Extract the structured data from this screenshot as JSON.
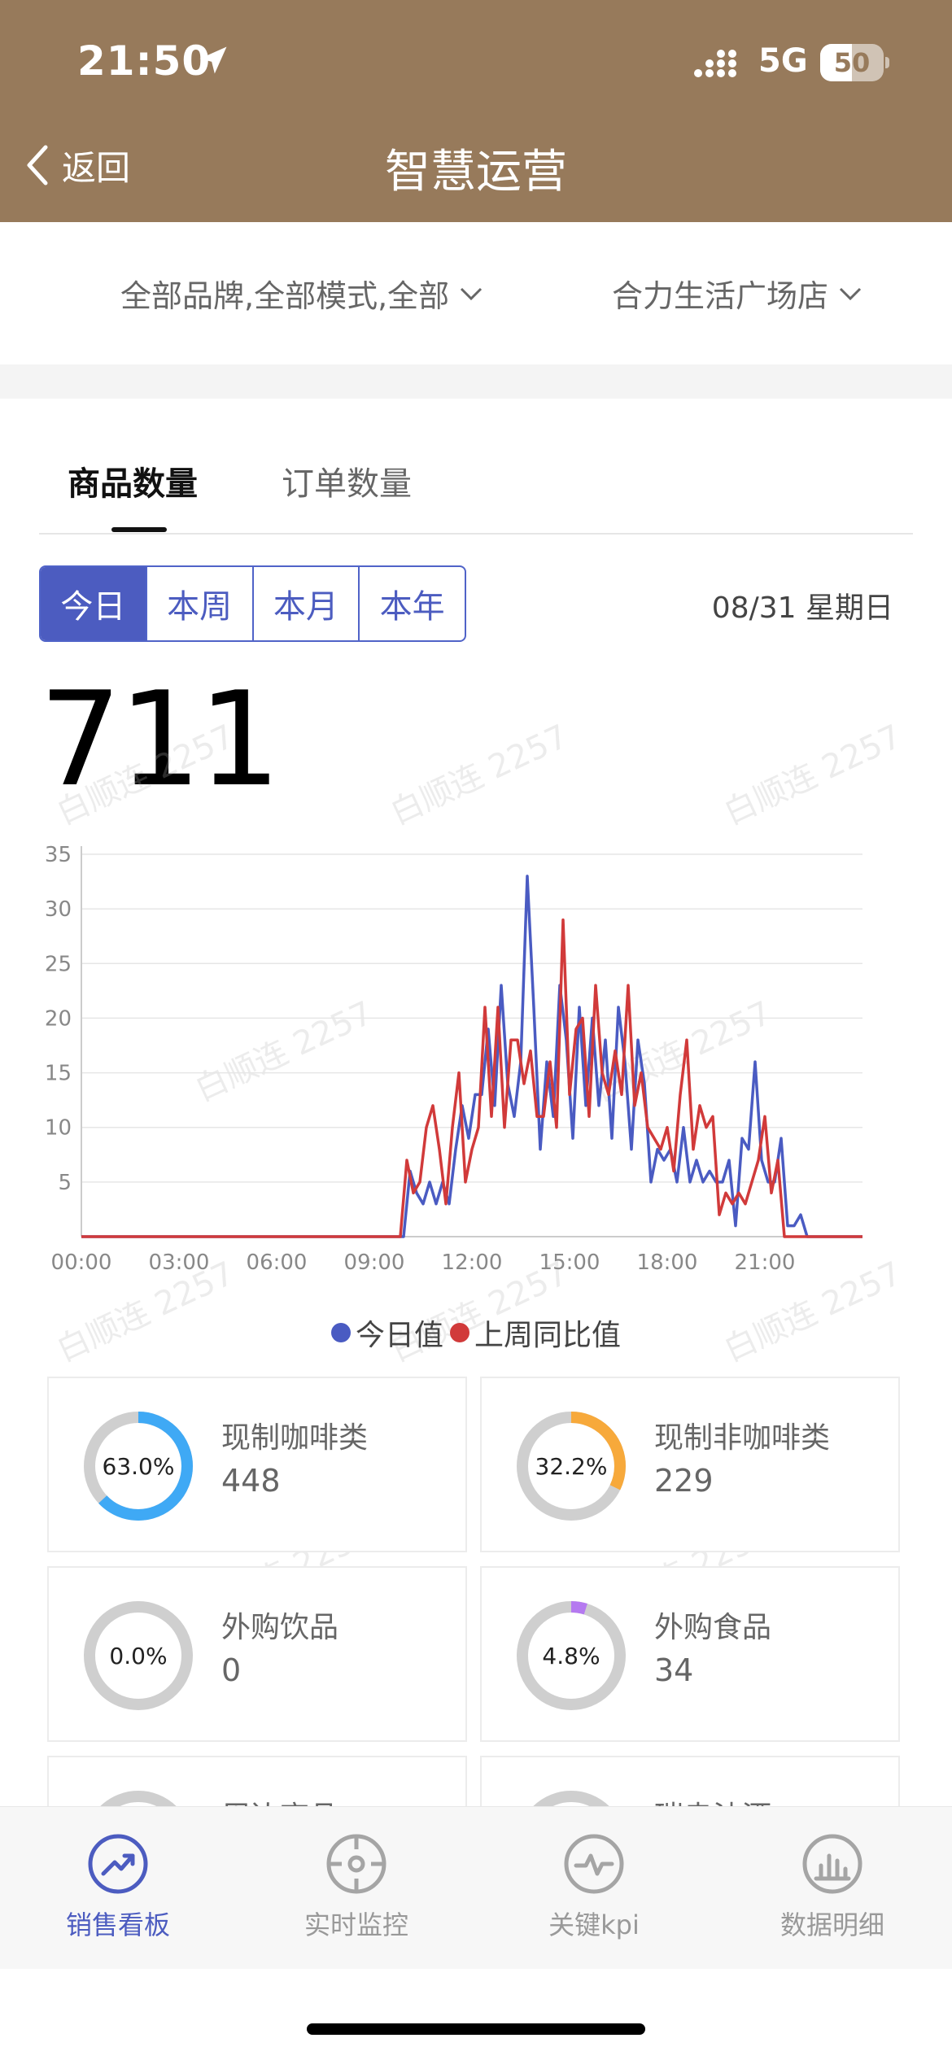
{
  "status_bar": {
    "time": "21:50",
    "network": "5G",
    "battery": "50",
    "battery_level": 0.5
  },
  "nav": {
    "back_label": "返回",
    "title": "智慧运营"
  },
  "filters": {
    "brand_mode": "全部品牌,全部模式,全部",
    "store": "合力生活广场店"
  },
  "tabs": [
    {
      "label": "商品数量",
      "active": true
    },
    {
      "label": "订单数量",
      "active": false
    }
  ],
  "period": {
    "options": [
      "今日",
      "本周",
      "本月",
      "本年"
    ],
    "selected": "今日"
  },
  "date": "08/31 星期日",
  "total": "711",
  "watermark": "白顺连 2257",
  "chart_data": {
    "type": "line",
    "x_ticks": [
      "00:00",
      "03:00",
      "06:00",
      "09:00",
      "12:00",
      "15:00",
      "18:00",
      "21:00"
    ],
    "y_ticks": [
      5,
      10,
      15,
      20,
      25,
      30,
      35
    ],
    "ylim": [
      0,
      35
    ],
    "xlim_hours": [
      0,
      24
    ],
    "grid": true,
    "legend_placement": "bottom",
    "series": [
      {
        "name": "今日值",
        "color": "#4a5bc2",
        "points": [
          [
            0,
            0
          ],
          [
            9.9,
            0
          ],
          [
            10.1,
            6
          ],
          [
            10.3,
            4
          ],
          [
            10.5,
            3
          ],
          [
            10.7,
            5
          ],
          [
            10.9,
            3
          ],
          [
            11.1,
            5
          ],
          [
            11.3,
            3
          ],
          [
            11.5,
            8
          ],
          [
            11.7,
            12
          ],
          [
            11.9,
            9
          ],
          [
            12.1,
            13
          ],
          [
            12.3,
            13
          ],
          [
            12.5,
            19
          ],
          [
            12.7,
            12
          ],
          [
            12.9,
            23
          ],
          [
            13.1,
            14
          ],
          [
            13.3,
            11
          ],
          [
            13.5,
            16
          ],
          [
            13.7,
            33
          ],
          [
            13.9,
            21
          ],
          [
            14.1,
            8
          ],
          [
            14.3,
            16
          ],
          [
            14.5,
            11
          ],
          [
            14.7,
            23
          ],
          [
            14.9,
            18
          ],
          [
            15.1,
            9
          ],
          [
            15.3,
            21
          ],
          [
            15.5,
            12
          ],
          [
            15.7,
            20
          ],
          [
            15.9,
            12
          ],
          [
            16.1,
            18
          ],
          [
            16.3,
            9
          ],
          [
            16.5,
            21
          ],
          [
            16.7,
            16
          ],
          [
            16.9,
            8
          ],
          [
            17.1,
            18
          ],
          [
            17.3,
            14
          ],
          [
            17.5,
            5
          ],
          [
            17.7,
            8
          ],
          [
            17.9,
            7
          ],
          [
            18.1,
            8
          ],
          [
            18.3,
            5
          ],
          [
            18.5,
            10
          ],
          [
            18.7,
            5
          ],
          [
            18.9,
            7
          ],
          [
            19.1,
            5
          ],
          [
            19.3,
            6
          ],
          [
            19.5,
            5
          ],
          [
            19.7,
            5
          ],
          [
            19.9,
            7
          ],
          [
            20.1,
            1
          ],
          [
            20.3,
            9
          ],
          [
            20.5,
            8
          ],
          [
            20.7,
            16
          ],
          [
            20.9,
            7
          ],
          [
            21.1,
            5
          ],
          [
            21.3,
            5
          ],
          [
            21.5,
            9
          ],
          [
            21.7,
            1
          ],
          [
            21.9,
            1
          ],
          [
            22.1,
            2
          ],
          [
            22.3,
            0
          ],
          [
            24,
            0
          ]
        ]
      },
      {
        "name": "上周同比值",
        "color": "#d13a3a",
        "points": [
          [
            0,
            0
          ],
          [
            9.8,
            0
          ],
          [
            10.0,
            7
          ],
          [
            10.2,
            4
          ],
          [
            10.4,
            5
          ],
          [
            10.6,
            10
          ],
          [
            10.8,
            12
          ],
          [
            11.0,
            8
          ],
          [
            11.2,
            3
          ],
          [
            11.4,
            10
          ],
          [
            11.6,
            15
          ],
          [
            11.8,
            5
          ],
          [
            12.0,
            8
          ],
          [
            12.2,
            10
          ],
          [
            12.4,
            21
          ],
          [
            12.6,
            11
          ],
          [
            12.8,
            21
          ],
          [
            13.0,
            10
          ],
          [
            13.2,
            18
          ],
          [
            13.4,
            18
          ],
          [
            13.6,
            14
          ],
          [
            13.8,
            17
          ],
          [
            14.0,
            11
          ],
          [
            14.2,
            11
          ],
          [
            14.4,
            16
          ],
          [
            14.6,
            10
          ],
          [
            14.8,
            29
          ],
          [
            15.0,
            13
          ],
          [
            15.2,
            19
          ],
          [
            15.4,
            20
          ],
          [
            15.6,
            11
          ],
          [
            15.8,
            23
          ],
          [
            16.0,
            15
          ],
          [
            16.2,
            13
          ],
          [
            16.4,
            17
          ],
          [
            16.6,
            13
          ],
          [
            16.8,
            23
          ],
          [
            17.0,
            12
          ],
          [
            17.2,
            15
          ],
          [
            17.4,
            10
          ],
          [
            17.6,
            9
          ],
          [
            17.8,
            8
          ],
          [
            18.0,
            10
          ],
          [
            18.2,
            6
          ],
          [
            18.4,
            13
          ],
          [
            18.6,
            18
          ],
          [
            18.8,
            8
          ],
          [
            19.0,
            12
          ],
          [
            19.2,
            10
          ],
          [
            19.4,
            11
          ],
          [
            19.6,
            2
          ],
          [
            19.8,
            4
          ],
          [
            20.0,
            3
          ],
          [
            20.2,
            4
          ],
          [
            20.4,
            3
          ],
          [
            20.6,
            5
          ],
          [
            20.8,
            7
          ],
          [
            21.0,
            11
          ],
          [
            21.2,
            4
          ],
          [
            21.4,
            7
          ],
          [
            21.6,
            0
          ],
          [
            24,
            0
          ]
        ]
      }
    ]
  },
  "categories": [
    {
      "name": "现制咖啡类",
      "value": "448",
      "percent": "63.0%",
      "fraction": 0.63,
      "color": "#3fa9f5"
    },
    {
      "name": "现制非咖啡类",
      "value": "229",
      "percent": "32.2%",
      "fraction": 0.322,
      "color": "#f7a93b"
    },
    {
      "name": "外购饮品",
      "value": "0",
      "percent": "0.0%",
      "fraction": 0.0,
      "color": "#3fa9f5"
    },
    {
      "name": "外购食品",
      "value": "34",
      "percent": "4.8%",
      "fraction": 0.048,
      "color": "#b57af0"
    },
    {
      "name": "周边商品",
      "value": "",
      "percent": "",
      "fraction": 0.0,
      "color": "#3fa9f5"
    },
    {
      "name": "瑞幸油酒",
      "value": "",
      "percent": "",
      "fraction": 0.0,
      "color": "#3fa9f5"
    }
  ],
  "tabbar": [
    {
      "label": "销售看板",
      "active": true
    },
    {
      "label": "实时监控",
      "active": false
    },
    {
      "label": "关键kpi",
      "active": false
    },
    {
      "label": "数据明细",
      "active": false
    }
  ]
}
